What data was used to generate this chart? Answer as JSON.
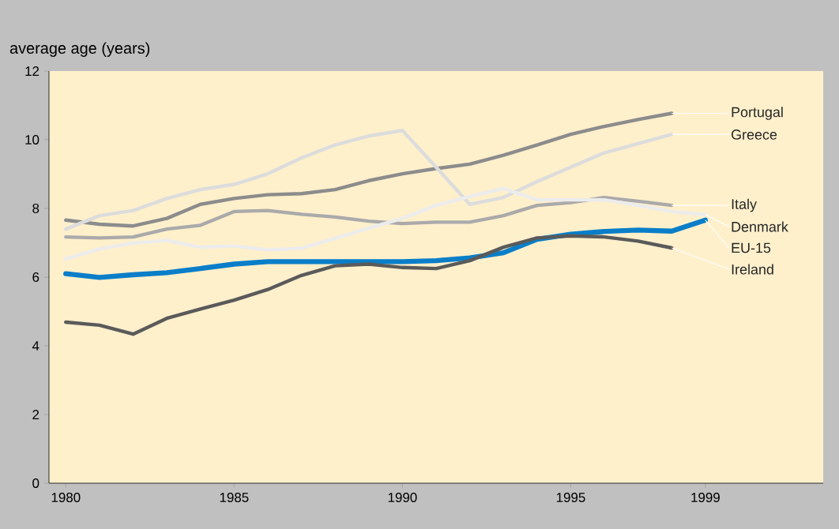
{
  "chart_data": {
    "type": "line",
    "ylabel": "average age (years)",
    "x": [
      1980,
      1981,
      1982,
      1983,
      1984,
      1985,
      1986,
      1987,
      1988,
      1989,
      1990,
      1991,
      1992,
      1993,
      1994,
      1995,
      1996,
      1997,
      1998,
      1999
    ],
    "series": [
      {
        "name": "Portugal",
        "color": "#8c8c8c",
        "values": [
          7.66,
          7.54,
          7.49,
          7.71,
          8.12,
          8.29,
          8.4,
          8.43,
          8.55,
          8.81,
          9.01,
          9.16,
          9.29,
          9.55,
          9.85,
          10.16,
          10.39,
          10.59,
          10.77,
          null
        ]
      },
      {
        "name": "Greece",
        "color": "#dcdcdc",
        "values": [
          7.4,
          7.79,
          7.94,
          8.29,
          8.55,
          8.7,
          9.01,
          9.47,
          9.85,
          10.11,
          10.27,
          9.2,
          8.12,
          8.32,
          8.78,
          9.2,
          9.62,
          9.89,
          10.16,
          null
        ]
      },
      {
        "name": "Italy",
        "color": "#aaaaaa",
        "values": [
          7.17,
          7.14,
          7.17,
          7.4,
          7.51,
          7.91,
          7.94,
          7.83,
          7.75,
          7.63,
          7.56,
          7.6,
          7.6,
          7.79,
          8.09,
          8.17,
          8.32,
          8.21,
          8.09,
          null
        ]
      },
      {
        "name": "Denmark",
        "color": "#ececec",
        "values": [
          6.53,
          6.82,
          6.99,
          7.07,
          6.87,
          6.91,
          6.79,
          6.84,
          7.13,
          7.43,
          7.71,
          8.09,
          8.35,
          8.58,
          8.25,
          8.25,
          8.25,
          8.09,
          7.91,
          7.82
        ]
      },
      {
        "name": "EU-15",
        "color": "#0a7ec8",
        "values": [
          6.1,
          5.99,
          6.07,
          6.13,
          6.25,
          6.38,
          6.45,
          6.45,
          6.45,
          6.45,
          6.45,
          6.48,
          6.56,
          6.71,
          7.1,
          7.25,
          7.33,
          7.37,
          7.34,
          7.66
        ]
      },
      {
        "name": "Ireland",
        "color": "#5a5a5a",
        "values": [
          4.69,
          4.6,
          4.34,
          4.8,
          5.07,
          5.33,
          5.64,
          6.05,
          6.33,
          6.38,
          6.28,
          6.25,
          6.48,
          6.87,
          7.14,
          7.2,
          7.17,
          7.05,
          6.85,
          null
        ]
      }
    ],
    "xlim": [
      1979.5,
      2002.5
    ],
    "xticks": [
      1980,
      1985,
      1990,
      1995,
      1999
    ],
    "ylim": [
      0,
      12
    ],
    "yticks": [
      0,
      2,
      4,
      6,
      8,
      10,
      12
    ],
    "grid": false,
    "legend": false
  }
}
